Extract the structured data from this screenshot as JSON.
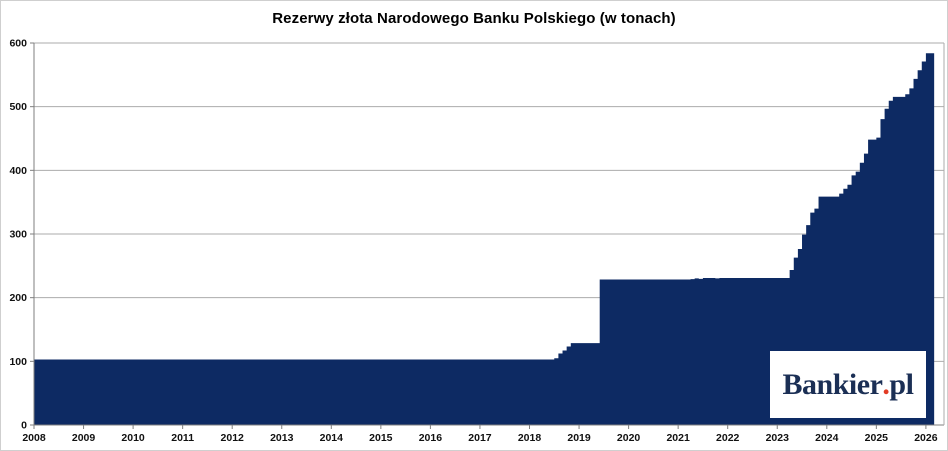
{
  "title": "Rezerwy złota Narodowego Banku Polskiego (w tonach)",
  "logo": {
    "main": "Bankier",
    "dot": ".",
    "suffix": "pl",
    "text_color": "#1b2f55",
    "dot_color": "#e23b24",
    "background": "#ffffff"
  },
  "colors": {
    "area_fill": "#0d2a63",
    "gridline": "#ababab",
    "axis": "#7f7f7f",
    "tick_label": "#111111",
    "background": "#ffffff",
    "frame_border": "#cfcfcf"
  },
  "chart_data": {
    "type": "area",
    "title": "Rezerwy złota Narodowego Banku Polskiego (w tonach)",
    "frequency": "monthly",
    "unit": "tony",
    "ylim": [
      0,
      600
    ],
    "y_ticks": [
      0,
      100,
      200,
      300,
      400,
      500,
      600
    ],
    "x_tick_years": [
      2008,
      2009,
      2010,
      2011,
      2012,
      2013,
      2014,
      2015,
      2016,
      2017,
      2018,
      2019,
      2020,
      2021,
      2022,
      2023,
      2024,
      2025,
      2026
    ],
    "grid": true,
    "legend": false,
    "series_name": "Rezerwy złota NBP",
    "series_start": "2008-01",
    "series_end": "2026-02",
    "series_changes": [
      [
        "2008-01",
        102.9
      ],
      [
        "2018-07",
        104.8
      ],
      [
        "2018-08",
        112.3
      ],
      [
        "2018-09",
        117.0
      ],
      [
        "2018-10",
        123.3
      ],
      [
        "2018-11",
        128.6
      ],
      [
        "2019-06",
        228.6
      ],
      [
        "2021-04",
        229.1
      ],
      [
        "2021-05",
        230.3
      ],
      [
        "2021-06",
        229.6
      ],
      [
        "2021-07",
        230.8
      ],
      [
        "2021-10",
        230.3
      ],
      [
        "2021-11",
        230.8
      ],
      [
        "2023-04",
        243.5
      ],
      [
        "2023-05",
        262.8
      ],
      [
        "2023-06",
        276.5
      ],
      [
        "2023-07",
        299.0
      ],
      [
        "2023-08",
        313.9
      ],
      [
        "2023-09",
        333.6
      ],
      [
        "2023-10",
        339.8
      ],
      [
        "2023-11",
        358.7
      ],
      [
        "2024-04",
        363.4
      ],
      [
        "2024-05",
        371.0
      ],
      [
        "2024-06",
        377.4
      ],
      [
        "2024-07",
        392.0
      ],
      [
        "2024-08",
        398.0
      ],
      [
        "2024-09",
        412.0
      ],
      [
        "2024-10",
        426.2
      ],
      [
        "2024-11",
        448.2
      ],
      [
        "2025-01",
        451.3
      ],
      [
        "2025-02",
        480.4
      ],
      [
        "2025-03",
        496.8
      ],
      [
        "2025-04",
        509.3
      ],
      [
        "2025-05",
        515.3
      ],
      [
        "2025-08",
        519.6
      ],
      [
        "2025-09",
        528.7
      ],
      [
        "2025-10",
        543.7
      ],
      [
        "2025-11",
        557.1
      ],
      [
        "2025-12",
        570.9
      ],
      [
        "2026-01",
        584.0
      ]
    ]
  }
}
